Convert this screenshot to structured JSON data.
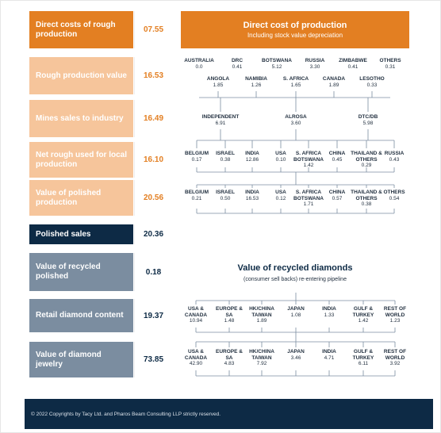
{
  "left_rows": [
    {
      "label": "Direct costs of rough production",
      "value": "07.55",
      "style": "orange"
    },
    {
      "label": "Rough production value",
      "value": "16.53",
      "style": "peach"
    },
    {
      "label": "Mines sales to industry",
      "value": "16.49",
      "style": "peach"
    },
    {
      "label": "Net rough used for local production",
      "value": "16.10",
      "style": "peach"
    },
    {
      "label": "Value of polished production",
      "value": "20.56",
      "style": "peach"
    },
    {
      "label": "Polished sales",
      "value": "20.36",
      "style": "dark"
    },
    {
      "label": "Value of recycled polished",
      "value": "0.18",
      "style": "grey"
    },
    {
      "label": "Retail diamond content",
      "value": "19.37",
      "style": "grey"
    },
    {
      "label": "Value of diamond jewelry",
      "value": "73.85",
      "style": "grey"
    }
  ],
  "header": {
    "title": "Direct cost of production",
    "subtitle": "Including stock value depreciation"
  },
  "producers_row1": [
    {
      "name": "AUSTRALIA",
      "value": "0.0"
    },
    {
      "name": "DRC",
      "value": "0.41"
    },
    {
      "name": "BOTSWANA",
      "value": "5.12"
    },
    {
      "name": "RUSSIA",
      "value": "3.30"
    },
    {
      "name": "ZIMBABWE",
      "value": "0.41"
    },
    {
      "name": "OTHERS",
      "value": "0.31"
    }
  ],
  "producers_row2": [
    {
      "name": "ANGOLA",
      "value": "1.85"
    },
    {
      "name": "NAMIBIA",
      "value": "1.26"
    },
    {
      "name": "S. AFRICA",
      "value": "1.65"
    },
    {
      "name": "CANADA",
      "value": "1.89"
    },
    {
      "name": "LESOTHO",
      "value": "0.33"
    }
  ],
  "sellers": [
    {
      "name": "INDEPENDENT",
      "value": "6.91"
    },
    {
      "name": "ALROSA",
      "value": "3.60"
    },
    {
      "name": "DTC/DB",
      "value": "5.98"
    }
  ],
  "rough_used": [
    {
      "name": "BELGIUM",
      "value": "0.17"
    },
    {
      "name": "ISRAEL",
      "value": "0.38"
    },
    {
      "name": "INDIA",
      "value": "12.86"
    },
    {
      "name": "USA",
      "value": "0.10"
    },
    {
      "name": "S. AFRICA BOTSWANA",
      "value": "1.42"
    },
    {
      "name": "CHINA",
      "value": "0.45"
    },
    {
      "name": "THAILAND & OTHERS",
      "value": "0.29"
    },
    {
      "name": "RUSSIA",
      "value": "0.43"
    }
  ],
  "polished_prod": [
    {
      "name": "BELGIUM",
      "value": "0.21"
    },
    {
      "name": "ISRAEL",
      "value": "0.50"
    },
    {
      "name": "INDIA",
      "value": "16.53"
    },
    {
      "name": "USA",
      "value": "0.12"
    },
    {
      "name": "S. AFRICA BOTSWANA",
      "value": "1.71"
    },
    {
      "name": "CHINA",
      "value": "0.57"
    },
    {
      "name": "THAILAND & OTHERS",
      "value": "0.38"
    },
    {
      "name": "OTHERS",
      "value": "0.54"
    }
  ],
  "recycled": {
    "title": "Value of recycled diamonds",
    "subtitle": "(consumer sell backs) re-entering pipeline"
  },
  "retail_content": [
    {
      "name": "USA & CANADA",
      "value": "10.94"
    },
    {
      "name": "EUROPE & SA",
      "value": "1.48"
    },
    {
      "name": "HK/CHINA TAIWAN",
      "value": "1.89"
    },
    {
      "name": "JAPAN",
      "value": "1.08"
    },
    {
      "name": "INDIA",
      "value": "1.33"
    },
    {
      "name": "GULF & TURKEY",
      "value": "1.42"
    },
    {
      "name": "REST OF WORLD",
      "value": "1.23"
    }
  ],
  "jewelry": [
    {
      "name": "USA & CANADA",
      "value": "42.90"
    },
    {
      "name": "EUROPE & SA",
      "value": "4.83"
    },
    {
      "name": "HK/CHINA TAIWAN",
      "value": "7.92"
    },
    {
      "name": "JAPAN",
      "value": "3.46"
    },
    {
      "name": "INDIA",
      "value": "4.71"
    },
    {
      "name": "GULF & TURKEY",
      "value": "6.11"
    },
    {
      "name": "REST OF WORLD",
      "value": "3.92"
    }
  ],
  "footer": {
    "text": "© 2022 Copyrights by Tacy Ltd. and Pharos Beam Consulting LLP strictly reserved."
  },
  "colors": {
    "orange": "#e37f22",
    "peach": "#f6c59b",
    "navy": "#0d2a45",
    "grey": "#7b8da0"
  }
}
